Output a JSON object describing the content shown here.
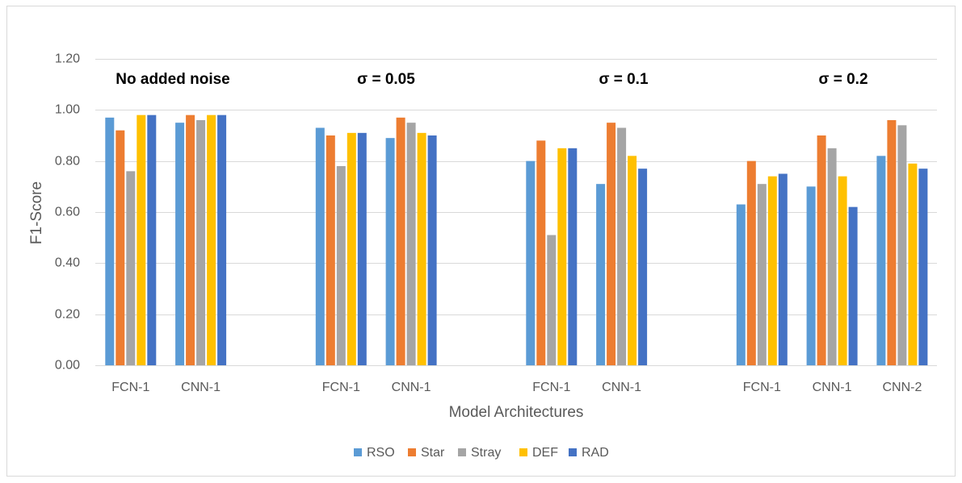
{
  "chart_data": {
    "type": "bar",
    "xlabel": "Model Architectures",
    "ylabel": "F1-Score",
    "ylim": [
      0,
      1.2
    ],
    "yticks": [
      "0.00",
      "0.20",
      "0.40",
      "0.60",
      "0.80",
      "1.00",
      "1.20"
    ],
    "grid": true,
    "legend_position": "bottom",
    "series_order": [
      "RSO",
      "Star",
      "Stray",
      "DEF",
      "RAD"
    ],
    "colors": {
      "RSO": "#5b9bd5",
      "Star": "#ed7d31",
      "Stray": "#a5a5a5",
      "DEF": "#ffc000",
      "RAD": "#4472c4"
    },
    "groups": [
      {
        "title": "No added noise",
        "models": [
          {
            "label": "FCN-1",
            "values": [
              0.97,
              0.92,
              0.76,
              0.98,
              0.98
            ]
          },
          {
            "label": "CNN-1",
            "values": [
              0.95,
              0.98,
              0.96,
              0.98,
              0.98
            ]
          }
        ]
      },
      {
        "title": "σ = 0.05",
        "models": [
          {
            "label": "FCN-1",
            "values": [
              0.93,
              0.9,
              0.78,
              0.91,
              0.91
            ]
          },
          {
            "label": "CNN-1",
            "values": [
              0.89,
              0.97,
              0.95,
              0.91,
              0.9
            ]
          }
        ]
      },
      {
        "title": "σ = 0.1",
        "models": [
          {
            "label": "FCN-1",
            "values": [
              0.8,
              0.88,
              0.51,
              0.85,
              0.85
            ]
          },
          {
            "label": "CNN-1",
            "values": [
              0.71,
              0.95,
              0.93,
              0.82,
              0.77
            ]
          }
        ]
      },
      {
        "title": "σ = 0.2",
        "models": [
          {
            "label": "FCN-1",
            "values": [
              0.63,
              0.8,
              0.71,
              0.74,
              0.75
            ]
          },
          {
            "label": "CNN-1",
            "values": [
              0.7,
              0.9,
              0.85,
              0.74,
              0.62
            ]
          },
          {
            "label": "CNN-2",
            "values": [
              0.82,
              0.96,
              0.94,
              0.79,
              0.77
            ]
          }
        ]
      }
    ]
  }
}
